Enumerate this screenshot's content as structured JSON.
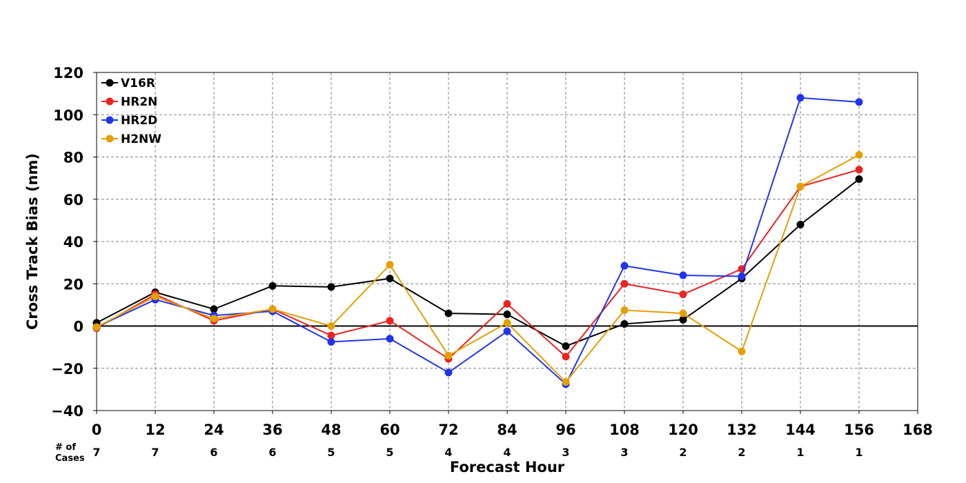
{
  "chart_data": {
    "type": "line",
    "xlabel": "Forecast Hour",
    "ylabel": "Cross Track Bias (nm)",
    "xlim": [
      0,
      168
    ],
    "ylim": [
      -40,
      120
    ],
    "x_ticks": [
      0,
      12,
      24,
      36,
      48,
      60,
      72,
      84,
      96,
      108,
      120,
      132,
      144,
      156,
      168
    ],
    "y_ticks": [
      -40,
      -20,
      0,
      20,
      40,
      60,
      80,
      100,
      120
    ],
    "x_tick_labels": [
      "0",
      "12",
      "24",
      "36",
      "48",
      "60",
      "72",
      "84",
      "96",
      "108",
      "120",
      "132",
      "144",
      "156",
      "168"
    ],
    "y_tick_labels": [
      "−40",
      "−20",
      "0",
      "20",
      "40",
      "60",
      "80",
      "100",
      "120"
    ],
    "grid": true,
    "legend_position": "top-left",
    "cases_label_line1": "# of",
    "cases_label_line2": "Cases",
    "cases": [
      7,
      7,
      6,
      6,
      5,
      5,
      4,
      4,
      3,
      3,
      2,
      2,
      1,
      1
    ],
    "x": [
      0,
      12,
      24,
      36,
      48,
      60,
      72,
      84,
      96,
      108,
      120,
      132,
      144,
      156
    ],
    "series": [
      {
        "name": "V16R",
        "color": "#000000",
        "values": [
          1.5,
          16,
          8,
          19,
          18.5,
          22.5,
          6,
          5.5,
          -9.5,
          1,
          3,
          22.5,
          48,
          69.5
        ]
      },
      {
        "name": "HR2N",
        "color": "#ee2222",
        "values": [
          -1,
          15,
          2.5,
          8,
          -4.5,
          2.5,
          -15.5,
          10.5,
          -14.5,
          20,
          15,
          27,
          66,
          74
        ]
      },
      {
        "name": "HR2D",
        "color": "#2233ee",
        "values": [
          -0.5,
          12.5,
          5,
          7,
          -7.5,
          -6,
          -22,
          -2.5,
          -27.5,
          28.5,
          24,
          23.5,
          108,
          106
        ]
      },
      {
        "name": "H2NW",
        "color": "#e69f00",
        "values": [
          -0.5,
          14,
          3.5,
          8,
          0,
          29,
          -14,
          1.5,
          -26.5,
          7.5,
          6,
          -12,
          66,
          81
        ]
      }
    ]
  }
}
